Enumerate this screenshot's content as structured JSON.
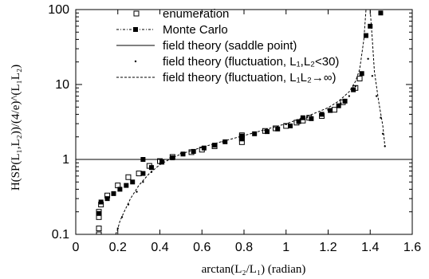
{
  "chart_data": {
    "type": "scatter",
    "xlabel": "arctan(L₂/L₁) (radian)",
    "ylabel": "H(SP(L₁,L₂))/(4/e)^(L₁L₂)",
    "x_ticks": [
      "0",
      "0.2",
      "0.4",
      "0.6",
      "0.8",
      "1",
      "1.2",
      "1.4",
      "1.6"
    ],
    "y_ticks": [
      "0.1",
      "1",
      "10",
      "100"
    ],
    "xlim": [
      0,
      1.6
    ],
    "ylim": [
      0.1,
      100
    ],
    "y_scale": "log",
    "legend_position": "top-left",
    "legend": [
      "enumeration",
      "Monte Carlo",
      "field theory (saddle point)",
      "field theory (fluctuation, L₁,L₂<30)",
      "field theory (fluctuation, L₁L₂→∞)"
    ],
    "series": [
      {
        "name": "enumeration",
        "marker": "open-square",
        "points": [
          [
            0.11,
            0.1
          ],
          [
            0.11,
            0.12
          ],
          [
            0.11,
            0.17
          ],
          [
            0.11,
            0.2
          ],
          [
            0.12,
            0.25
          ],
          [
            0.15,
            0.33
          ],
          [
            0.2,
            0.45
          ],
          [
            0.25,
            0.58
          ],
          [
            0.3,
            0.65
          ],
          [
            0.35,
            0.82
          ],
          [
            0.4,
            0.95
          ],
          [
            0.46,
            1.08
          ],
          [
            0.55,
            1.25
          ],
          [
            0.6,
            1.35
          ],
          [
            0.66,
            1.5
          ],
          [
            0.79,
            1.7
          ],
          [
            0.79,
            1.9
          ],
          [
            0.79,
            2.0
          ],
          [
            0.79,
            2.1
          ],
          [
            0.9,
            2.4
          ],
          [
            0.95,
            2.6
          ],
          [
            1.0,
            2.8
          ],
          [
            1.05,
            3.1
          ],
          [
            1.08,
            3.3
          ],
          [
            1.11,
            3.6
          ],
          [
            1.17,
            3.8
          ],
          [
            1.23,
            4.6
          ],
          [
            1.27,
            5.8
          ],
          [
            1.33,
            9.0
          ],
          [
            1.35,
            12.0
          ]
        ]
      },
      {
        "name": "Monte Carlo",
        "marker": "filled-square",
        "points": [
          [
            0.11,
            0.19
          ],
          [
            0.12,
            0.27
          ],
          [
            0.15,
            0.3
          ],
          [
            0.18,
            0.35
          ],
          [
            0.21,
            0.4
          ],
          [
            0.24,
            0.45
          ],
          [
            0.27,
            0.5
          ],
          [
            0.32,
            0.65
          ],
          [
            0.32,
            1.0
          ],
          [
            0.36,
            0.78
          ],
          [
            0.41,
            0.92
          ],
          [
            0.46,
            1.05
          ],
          [
            0.51,
            1.18
          ],
          [
            0.56,
            1.28
          ],
          [
            0.61,
            1.42
          ],
          [
            0.66,
            1.55
          ],
          [
            0.71,
            1.72
          ],
          [
            0.79,
            1.9
          ],
          [
            0.79,
            2.0
          ],
          [
            0.79,
            2.05
          ],
          [
            0.85,
            2.2
          ],
          [
            0.91,
            2.35
          ],
          [
            0.96,
            2.55
          ],
          [
            1.02,
            2.8
          ],
          [
            1.06,
            3.2
          ],
          [
            1.08,
            3.6
          ],
          [
            1.12,
            3.5
          ],
          [
            1.17,
            4.0
          ],
          [
            1.21,
            4.5
          ],
          [
            1.25,
            5.2
          ],
          [
            1.28,
            6.0
          ],
          [
            1.32,
            8.5
          ],
          [
            1.36,
            14.0
          ],
          [
            1.38,
            45.0
          ],
          [
            1.4,
            60.0
          ],
          [
            1.45,
            90.0
          ]
        ]
      },
      {
        "name": "field theory (saddle point)",
        "marker": "solid-line",
        "points": [
          [
            0,
            1
          ],
          [
            1.6,
            1
          ]
        ]
      },
      {
        "name": "field theory (fluctuation, L₁,L₂<30)",
        "marker": "dot",
        "points": [
          [
            0.2,
            0.12
          ],
          [
            0.22,
            0.17
          ],
          [
            0.25,
            0.25
          ],
          [
            0.29,
            0.37
          ],
          [
            0.32,
            0.5
          ],
          [
            0.36,
            0.68
          ],
          [
            0.4,
            0.88
          ],
          [
            0.45,
            1.05
          ],
          [
            0.5,
            1.2
          ],
          [
            0.6,
            1.45
          ],
          [
            0.7,
            1.72
          ],
          [
            0.8,
            2.05
          ],
          [
            0.9,
            2.45
          ],
          [
            1.0,
            2.95
          ],
          [
            1.1,
            3.65
          ],
          [
            1.2,
            4.6
          ],
          [
            1.26,
            5.6
          ],
          [
            1.3,
            7.0
          ],
          [
            1.33,
            9.5
          ],
          [
            1.36,
            14.0
          ],
          [
            1.39,
            22.0
          ],
          [
            1.41,
            13.0
          ],
          [
            1.43,
            7.0
          ],
          [
            1.45,
            3.6
          ],
          [
            1.46,
            2.2
          ],
          [
            1.47,
            1.5
          ]
        ]
      },
      {
        "name": "field theory (fluctuation, L₁L₂→∞)",
        "marker": "dashed-line",
        "points": [
          [
            0.19,
            0.1
          ],
          [
            0.2,
            0.12
          ],
          [
            0.21,
            0.15
          ],
          [
            0.23,
            0.2
          ],
          [
            0.26,
            0.3
          ],
          [
            0.3,
            0.45
          ],
          [
            0.35,
            0.65
          ],
          [
            0.4,
            0.85
          ],
          [
            0.45,
            1.02
          ],
          [
            0.5,
            1.18
          ],
          [
            0.6,
            1.45
          ],
          [
            0.7,
            1.75
          ],
          [
            0.8,
            2.08
          ],
          [
            0.9,
            2.5
          ],
          [
            1.0,
            3.0
          ],
          [
            1.1,
            3.75
          ],
          [
            1.2,
            4.9
          ],
          [
            1.25,
            6.0
          ],
          [
            1.3,
            8.0
          ],
          [
            1.33,
            11.0
          ],
          [
            1.35,
            16.0
          ],
          [
            1.37,
            40.0
          ],
          [
            1.38,
            100.0
          ],
          [
            1.4,
            100.0
          ],
          [
            1.41,
            40.0
          ],
          [
            1.42,
            15.0
          ],
          [
            1.44,
            6.0
          ],
          [
            1.46,
            2.8
          ],
          [
            1.47,
            1.5
          ]
        ]
      }
    ]
  }
}
